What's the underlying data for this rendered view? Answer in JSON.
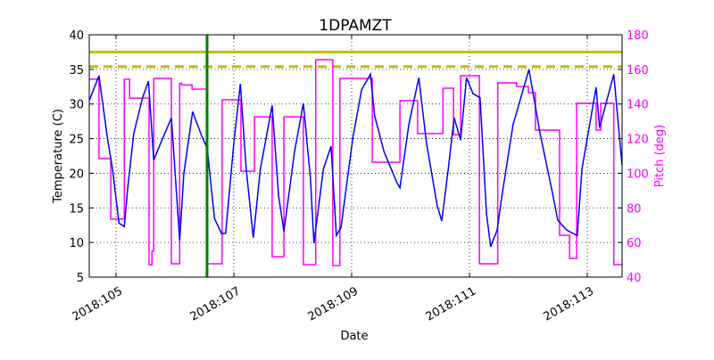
{
  "chart_data": {
    "type": "line",
    "title": "1DPAMZT",
    "xlabel": "Date",
    "ylabel": "Temperature (C)",
    "y2label": "Pitch (deg)",
    "xlim": [
      104.545,
      113.591
    ],
    "ylim": [
      5,
      40
    ],
    "y2lim": [
      40,
      180
    ],
    "grid": true,
    "x_ticks": [
      105,
      107,
      109,
      111,
      113
    ],
    "x_tick_labels": [
      "2018:105",
      "2018:107",
      "2018:109",
      "2018:111",
      "2018:113"
    ],
    "y_ticks": [
      5,
      10,
      15,
      20,
      25,
      30,
      35,
      40
    ],
    "y2_ticks": [
      40,
      60,
      80,
      100,
      120,
      140,
      160,
      180
    ],
    "colors": {
      "temperature": "#0000ff",
      "pitch": "#ff00ff",
      "limits": "#bfbf00",
      "now_marker": "#007f00",
      "y2_axis": "#ff00ff"
    },
    "limit_lines": [
      {
        "value": 37.5,
        "axis": "temperature",
        "style": "solid"
      },
      {
        "value": 35.4,
        "axis": "temperature",
        "style": "dashed"
      }
    ],
    "vertical_marker": 106.545,
    "series": [
      {
        "axis": "temperature",
        "points": [
          [
            104.55,
            30.6
          ],
          [
            104.71,
            34.1
          ],
          [
            104.85,
            25.3
          ],
          [
            104.94,
            20.6
          ],
          [
            105.05,
            12.8
          ],
          [
            105.14,
            12.3
          ],
          [
            105.2,
            18.0
          ],
          [
            105.3,
            25.7
          ],
          [
            105.45,
            30.9
          ],
          [
            105.55,
            33.3
          ],
          [
            105.64,
            21.9
          ],
          [
            105.76,
            24.4
          ],
          [
            105.94,
            28.0
          ],
          [
            106.08,
            10.3
          ],
          [
            106.15,
            19.9
          ],
          [
            106.3,
            28.9
          ],
          [
            106.44,
            25.7
          ],
          [
            106.55,
            23.5
          ],
          [
            106.67,
            13.5
          ],
          [
            106.79,
            11.3
          ],
          [
            106.86,
            11.3
          ],
          [
            107.0,
            24.4
          ],
          [
            107.11,
            32.9
          ],
          [
            107.21,
            20.6
          ],
          [
            107.33,
            10.7
          ],
          [
            107.45,
            20.6
          ],
          [
            107.65,
            29.8
          ],
          [
            107.76,
            16.7
          ],
          [
            107.85,
            11.6
          ],
          [
            108.03,
            23.1
          ],
          [
            108.18,
            30.1
          ],
          [
            108.3,
            19.3
          ],
          [
            108.36,
            9.9
          ],
          [
            108.52,
            20.6
          ],
          [
            108.65,
            23.9
          ],
          [
            108.74,
            11.0
          ],
          [
            108.82,
            12.2
          ],
          [
            109.02,
            25.1
          ],
          [
            109.17,
            32.1
          ],
          [
            109.32,
            34.3
          ],
          [
            109.39,
            28.3
          ],
          [
            109.55,
            23.1
          ],
          [
            109.77,
            18.6
          ],
          [
            109.82,
            17.9
          ],
          [
            109.97,
            27.0
          ],
          [
            110.14,
            33.8
          ],
          [
            110.27,
            24.4
          ],
          [
            110.45,
            15.4
          ],
          [
            110.53,
            13.1
          ],
          [
            110.64,
            20.6
          ],
          [
            110.74,
            28.0
          ],
          [
            110.85,
            24.8
          ],
          [
            110.95,
            33.8
          ],
          [
            111.06,
            31.5
          ],
          [
            111.18,
            30.9
          ],
          [
            111.29,
            14.1
          ],
          [
            111.36,
            9.4
          ],
          [
            111.47,
            11.8
          ],
          [
            111.55,
            16.7
          ],
          [
            111.74,
            27.0
          ],
          [
            112.01,
            35.0
          ],
          [
            112.2,
            25.7
          ],
          [
            112.42,
            16.7
          ],
          [
            112.5,
            13.2
          ],
          [
            112.65,
            11.8
          ],
          [
            112.83,
            11.0
          ],
          [
            112.91,
            20.6
          ],
          [
            113.15,
            32.4
          ],
          [
            113.21,
            26.6
          ],
          [
            113.45,
            34.3
          ],
          [
            113.59,
            21.2
          ]
        ]
      },
      {
        "axis": "pitch",
        "steps": [
          [
            104.545,
            154.3
          ],
          [
            104.71,
            108.5
          ],
          [
            104.91,
            73.5
          ],
          [
            105.14,
            154.3
          ],
          [
            105.23,
            143.4
          ],
          [
            105.56,
            47.2
          ],
          [
            105.61,
            55.0
          ],
          [
            105.64,
            154.8
          ],
          [
            105.94,
            47.7
          ],
          [
            106.08,
            152.0
          ],
          [
            106.11,
            151.0
          ],
          [
            106.29,
            148.6
          ],
          [
            106.55,
            47.7
          ],
          [
            106.8,
            142.4
          ],
          [
            107.12,
            101.2
          ],
          [
            107.35,
            132.6
          ],
          [
            107.65,
            51.8
          ],
          [
            107.85,
            132.6
          ],
          [
            108.18,
            47.2
          ],
          [
            108.39,
            165.6
          ],
          [
            108.68,
            46.7
          ],
          [
            108.8,
            154.8
          ],
          [
            109.35,
            106.4
          ],
          [
            109.82,
            141.9
          ],
          [
            110.12,
            122.9
          ],
          [
            110.55,
            149.1
          ],
          [
            110.73,
            122.3
          ],
          [
            110.85,
            156.3
          ],
          [
            111.17,
            47.7
          ],
          [
            111.48,
            152.2
          ],
          [
            111.8,
            150.1
          ],
          [
            112.0,
            146.5
          ],
          [
            112.12,
            124.9
          ],
          [
            112.53,
            64.2
          ],
          [
            112.7,
            50.8
          ],
          [
            112.82,
            140.4
          ],
          [
            113.15,
            124.9
          ],
          [
            113.23,
            140.4
          ],
          [
            113.45,
            47.2
          ]
        ],
        "end": 113.591
      }
    ]
  }
}
